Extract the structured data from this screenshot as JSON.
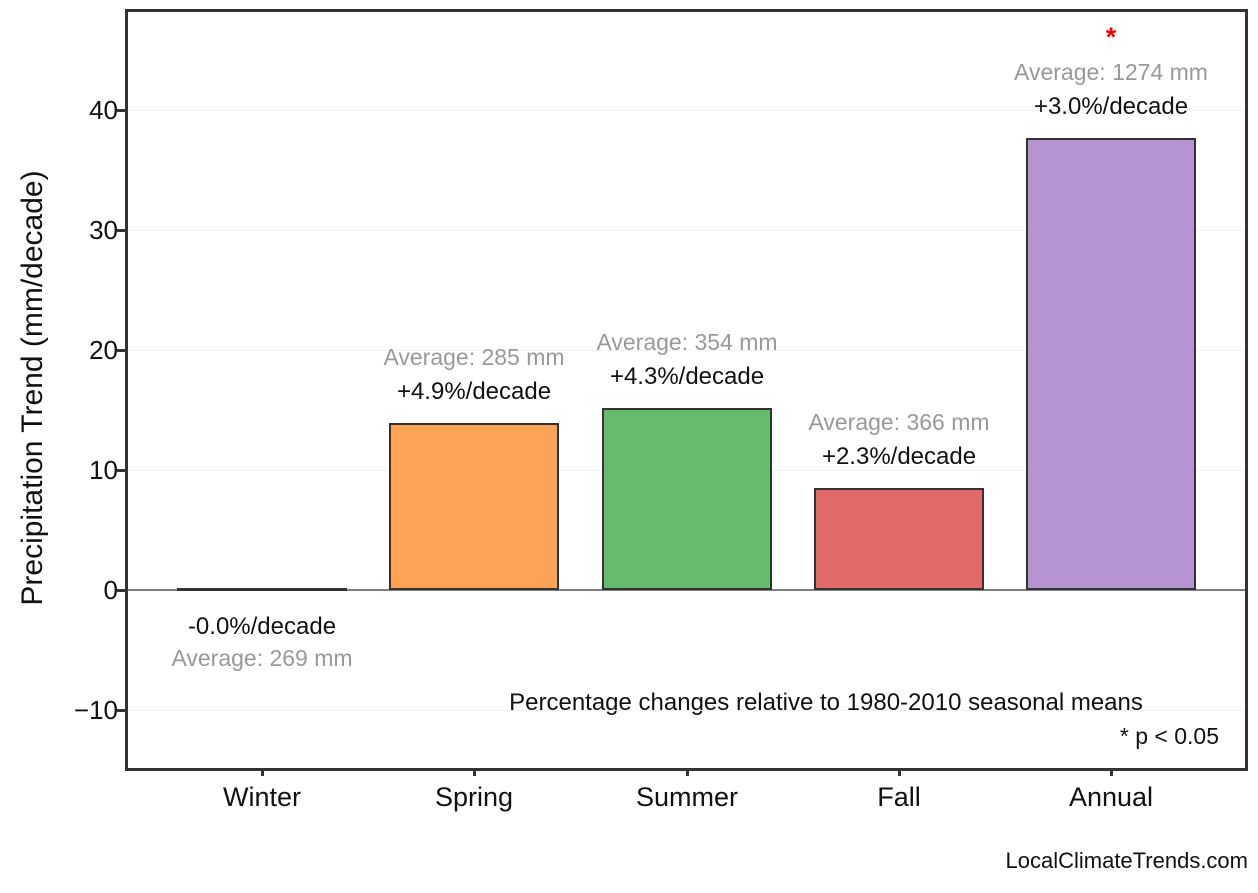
{
  "chart_data": {
    "type": "bar",
    "title": "",
    "xlabel": "",
    "ylabel": "Precipitation Trend (mm/decade)",
    "categories": [
      "Winter",
      "Spring",
      "Summer",
      "Fall",
      "Annual"
    ],
    "values": [
      -0.1,
      13.9,
      15.2,
      8.5,
      37.7
    ],
    "ylim": [
      -14.8,
      48.2
    ],
    "grid": "horizontal-faint",
    "legend": "none",
    "y_axis": {
      "ticks": [
        {
          "value": 40,
          "label": "40"
        },
        {
          "value": 30,
          "label": "30"
        },
        {
          "value": 20,
          "label": "20"
        },
        {
          "value": 10,
          "label": "10"
        },
        {
          "value": 0,
          "label": "0"
        },
        {
          "value": -10,
          "label": "−10"
        }
      ]
    },
    "bars": [
      {
        "label": "Winter",
        "value": -0.1,
        "pct_label": "-0.0%/decade",
        "avg_label": "Average: 269 mm",
        "color": "#333333",
        "significant": false
      },
      {
        "label": "Spring",
        "value": 13.9,
        "pct_label": "+4.9%/decade",
        "avg_label": "Average: 285 mm",
        "color": "#FDA355",
        "significant": false
      },
      {
        "label": "Summer",
        "value": 15.2,
        "pct_label": "+4.3%/decade",
        "avg_label": "Average: 354 mm",
        "color": "#67BC6B",
        "significant": false
      },
      {
        "label": "Fall",
        "value": 8.5,
        "pct_label": "+2.3%/decade",
        "avg_label": "Average: 366 mm",
        "color": "#E16968",
        "significant": false
      },
      {
        "label": "Annual",
        "value": 37.7,
        "pct_label": "+3.0%/decade",
        "avg_label": "Average: 1274 mm",
        "color": "#B495D1",
        "significant": true
      }
    ],
    "asterisk": "*",
    "note": "Percentage changes relative to 1980-2010 seasonal means",
    "significance_note": "* p < 0.05",
    "colors": {
      "bar_edge": "#333333",
      "zero_line": "#808080",
      "gridline": "#f2f2f2",
      "axis_border": "#333333",
      "avg_text": "#999999",
      "asterisk": "#ff0000",
      "text": "#111111"
    }
  },
  "footer": {
    "brand": "LocalClimateTrends.com"
  }
}
